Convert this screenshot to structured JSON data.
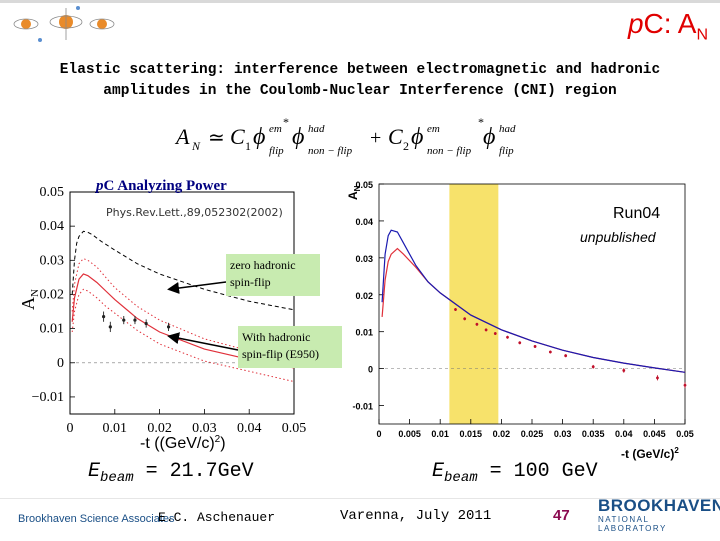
{
  "slide": {
    "title": "p",
    "title_tail": "C: A",
    "title_sub": "N",
    "subtitle_line1": "Elastic scattering: interference between electromagnetic and hadronic",
    "subtitle_line2": "amplitudes in the Coulomb-Nuclear Interference (CNI) region"
  },
  "formula": {
    "lhs": "A",
    "lhs_sub": "N",
    "approx": "≃",
    "c1": "C",
    "c1_sub": "1",
    "c2": "C",
    "c2_sub": "2",
    "plus": "+",
    "phi": "ϕ",
    "em": "em",
    "had": "had",
    "flip": "flip",
    "nonflip": "non − flip",
    "star": "*"
  },
  "energy": {
    "left_label": "E",
    "left_sub": "beam",
    "left_value": " = 21.7GeV",
    "right_label": "E",
    "right_sub": "beam",
    "right_value": " = 100 GeV"
  },
  "footer": {
    "org": "Brookhaven Science Associates",
    "author": "E.C. Aschenauer",
    "venue": "Varenna, July 2011",
    "page": "47",
    "logo_main": "BROOKHAVEN",
    "logo_sub": "NATIONAL LABORATORY"
  },
  "colors": {
    "title_red": "#e00000",
    "band_yellow": "#f7e26b",
    "box_green": "#c8ebb0",
    "curve_red": "#e0303a",
    "curve_blue": "#1a1ab0",
    "brand_blue": "#1a4f86",
    "page_purple": "#8b0a50"
  },
  "chart_data": [
    {
      "type": "line",
      "title": "pC Analyzing Power",
      "title_p": "p",
      "title_rest": "C Analyzing Power",
      "reference": "Phys.Rev.Lett.,89,052302(2002)",
      "xlabel": "-t ((GeV/c)",
      "xlabel_sup": "2",
      "xlabel_close": ")",
      "ylabel": "A",
      "ylabel_sub": "N",
      "xlim": [
        0,
        0.05
      ],
      "ylim": [
        -0.015,
        0.05
      ],
      "xticks": [
        0,
        0.01,
        0.02,
        0.03,
        0.04,
        0.05
      ],
      "xtick_labels": [
        "0",
        "0.01",
        "0.02",
        "0.03",
        "0.04",
        "0.05"
      ],
      "yticks": [
        -0.01,
        0,
        0.01,
        0.02,
        0.03,
        0.04,
        0.05
      ],
      "ytick_labels": [
        "−0.01",
        "0",
        "0.01",
        "0.02",
        "0.03",
        "0.04",
        "0.05"
      ],
      "annotations": [
        {
          "text1": "zero hadronic",
          "text2": "spin-flip",
          "arrow_to_x": 0.022,
          "arrow_to_y": 0.0215
        },
        {
          "text1": "With hadronic",
          "text2": "spin-flip (E950)",
          "arrow_to_x": 0.022,
          "arrow_to_y": 0.0078
        }
      ],
      "series": [
        {
          "name": "zero hadronic spin-flip",
          "style": "dashed",
          "color": "#000000",
          "x": [
            0.0005,
            0.001,
            0.0015,
            0.002,
            0.003,
            0.004,
            0.005,
            0.007,
            0.01,
            0.015,
            0.02,
            0.03,
            0.04,
            0.05
          ],
          "y": [
            0.02,
            0.03,
            0.035,
            0.037,
            0.0385,
            0.0382,
            0.0375,
            0.0355,
            0.033,
            0.029,
            0.026,
            0.0215,
            0.018,
            0.0155
          ]
        },
        {
          "name": "with hadronic spin-flip upper",
          "style": "dotted",
          "color": "#e0303a",
          "x": [
            0.0005,
            0.001,
            0.002,
            0.003,
            0.004,
            0.006,
            0.008,
            0.01,
            0.015,
            0.02,
            0.03,
            0.04,
            0.05
          ],
          "y": [
            0.015,
            0.023,
            0.029,
            0.0305,
            0.03,
            0.028,
            0.025,
            0.022,
            0.0165,
            0.0125,
            0.007,
            0.0035,
            0.001
          ]
        },
        {
          "name": "with hadronic spin-flip",
          "style": "solid",
          "color": "#e0303a",
          "x": [
            0.0005,
            0.001,
            0.002,
            0.003,
            0.004,
            0.006,
            0.008,
            0.01,
            0.015,
            0.02,
            0.03,
            0.04,
            0.05
          ],
          "y": [
            0.012,
            0.019,
            0.0245,
            0.026,
            0.0255,
            0.0235,
            0.021,
            0.0185,
            0.013,
            0.009,
            0.004,
            0.001,
            -0.0015
          ]
        },
        {
          "name": "with hadronic spin-flip lower",
          "style": "dotted",
          "color": "#e0303a",
          "x": [
            0.0005,
            0.001,
            0.002,
            0.003,
            0.004,
            0.006,
            0.008,
            0.01,
            0.015,
            0.02,
            0.03,
            0.04,
            0.05
          ],
          "y": [
            0.009,
            0.015,
            0.02,
            0.0215,
            0.021,
            0.019,
            0.0165,
            0.0145,
            0.0095,
            0.0055,
            0.0005,
            -0.0025,
            -0.0055
          ]
        }
      ],
      "points": {
        "x": [
          0.0075,
          0.009,
          0.012,
          0.0145,
          0.017,
          0.022
        ],
        "y": [
          0.0135,
          0.0105,
          0.0125,
          0.0125,
          0.0115,
          0.0105
        ],
        "err": [
          0.0015,
          0.0015,
          0.0012,
          0.0012,
          0.0012,
          0.0012
        ]
      }
    },
    {
      "type": "line",
      "title": "Run04",
      "note": "unpublished",
      "xlabel": "-t (GeV/c)",
      "xlabel_sup": "2",
      "ylabel": "A",
      "ylabel_sub": "N",
      "xlim": [
        0,
        0.05
      ],
      "ylim": [
        -0.015,
        0.05
      ],
      "xticks": [
        0,
        0.005,
        0.01,
        0.015,
        0.02,
        0.025,
        0.03,
        0.035,
        0.04,
        0.045,
        0.05
      ],
      "xtick_labels": [
        "0",
        "0.005",
        "0.01",
        "0.015",
        "0.02",
        "0.025",
        "0.03",
        "0.035",
        "0.04",
        "0.045",
        "0.05"
      ],
      "yticks": [
        -0.01,
        0,
        0.01,
        0.02,
        0.03,
        0.04,
        0.05
      ],
      "ytick_labels": [
        "-0.01",
        "0",
        "0.01",
        "0.02",
        "0.03",
        "0.04",
        "0.05"
      ],
      "highlight_band": [
        0.0115,
        0.0195
      ],
      "series": [
        {
          "name": "with hadronic spin-flip",
          "style": "solid",
          "color": "#e0303a",
          "x": [
            0.0005,
            0.001,
            0.0015,
            0.002,
            0.003,
            0.004,
            0.006,
            0.008,
            0.01,
            0.015,
            0.02,
            0.025,
            0.03,
            0.035,
            0.04,
            0.045,
            0.05
          ],
          "y": [
            0.014,
            0.024,
            0.029,
            0.031,
            0.0325,
            0.031,
            0.0275,
            0.0235,
            0.0205,
            0.0145,
            0.0105,
            0.0075,
            0.005,
            0.003,
            0.0015,
            0.0002,
            -0.001
          ]
        },
        {
          "name": "zero hadronic spin-flip",
          "style": "solid",
          "color": "#1a1ab0",
          "x": [
            0.0005,
            0.001,
            0.0015,
            0.002,
            0.003,
            0.004,
            0.006,
            0.008,
            0.01,
            0.015,
            0.02,
            0.025,
            0.03,
            0.035,
            0.04,
            0.045,
            0.05
          ],
          "y": [
            0.018,
            0.031,
            0.036,
            0.0375,
            0.037,
            0.034,
            0.028,
            0.0235,
            0.0205,
            0.0145,
            0.0105,
            0.0075,
            0.005,
            0.003,
            0.0015,
            0.0002,
            -0.001
          ]
        }
      ],
      "points": {
        "x": [
          0.0125,
          0.014,
          0.016,
          0.0175,
          0.019,
          0.021,
          0.023,
          0.0255,
          0.028,
          0.0305,
          0.035,
          0.04,
          0.0455,
          0.05
        ],
        "y": [
          0.016,
          0.0135,
          0.012,
          0.0105,
          0.0095,
          0.0085,
          0.007,
          0.006,
          0.0045,
          0.0035,
          0.0005,
          -0.0005,
          -0.0025,
          -0.0045
        ],
        "err": [
          0.0004,
          0.0004,
          0.0004,
          0.0004,
          0.0004,
          0.0004,
          0.0004,
          0.0004,
          0.0004,
          0.0004,
          0.0005,
          0.0006,
          0.0007,
          0.0008
        ]
      }
    }
  ]
}
